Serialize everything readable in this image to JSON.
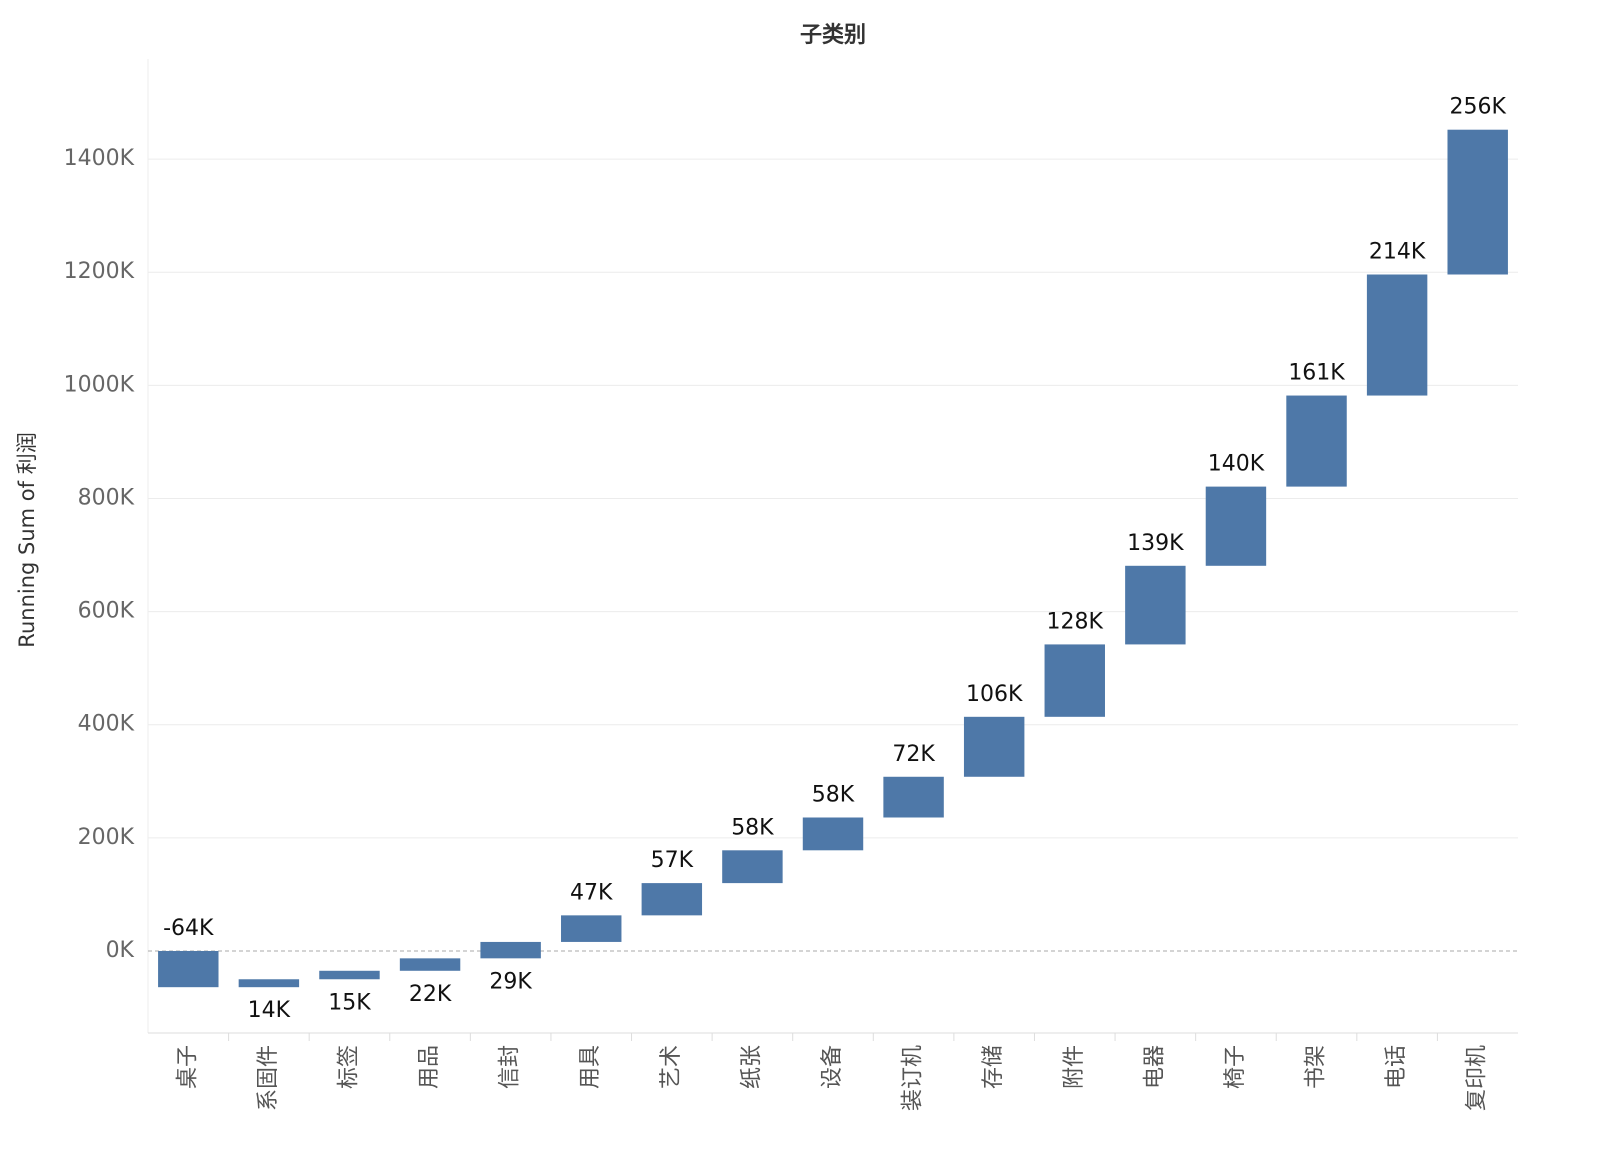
{
  "chart_data": {
    "type": "waterfall",
    "title": "子类别",
    "y_label": "Running Sum of 利润",
    "categories": [
      "桌子",
      "系固件",
      "标签",
      "用品",
      "信封",
      "用具",
      "艺术",
      "纸张",
      "设备",
      "装订机",
      "存储",
      "附件",
      "电器",
      "椅子",
      "书架",
      "电话",
      "复印机"
    ],
    "values": [
      -64,
      14,
      15,
      22,
      29,
      47,
      57,
      58,
      58,
      72,
      106,
      128,
      139,
      140,
      161,
      214,
      256
    ],
    "value_labels": [
      "-64K",
      "14K",
      "15K",
      "22K",
      "29K",
      "47K",
      "57K",
      "58K",
      "58K",
      "72K",
      "106K",
      "128K",
      "139K",
      "140K",
      "161K",
      "214K",
      "256K"
    ],
    "color": "#4e78a8",
    "ylim": [
      -145,
      1577
    ],
    "yticks": [
      {
        "value": 0,
        "label": "0K"
      },
      {
        "value": 200,
        "label": "200K"
      },
      {
        "value": 400,
        "label": "400K"
      },
      {
        "value": 600,
        "label": "600K"
      },
      {
        "value": 800,
        "label": "800K"
      },
      {
        "value": 1000,
        "label": "1000K"
      },
      {
        "value": 1200,
        "label": "1200K"
      },
      {
        "value": 1400,
        "label": "1400K"
      }
    ],
    "grid": true
  }
}
